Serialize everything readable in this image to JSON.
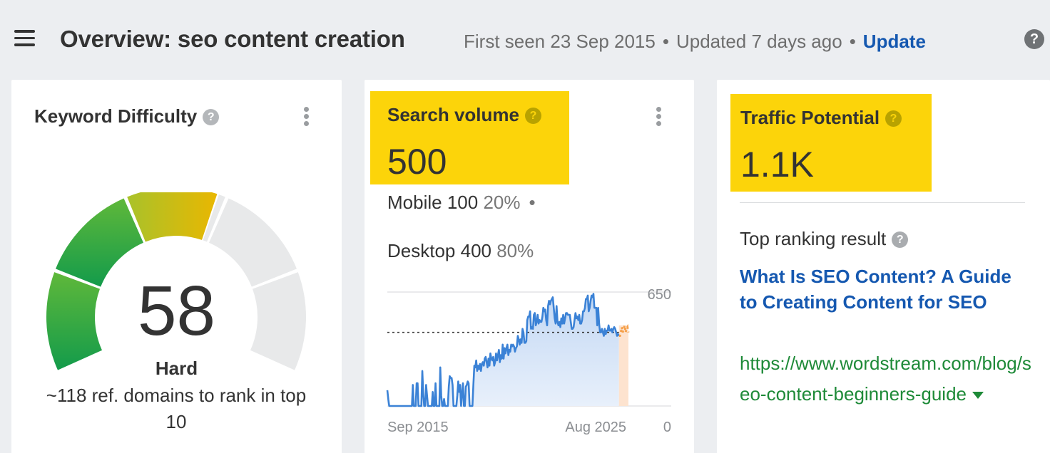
{
  "header": {
    "title": "Overview: seo content creation",
    "first_seen": "First seen 23 Sep 2015",
    "updated": "Updated 7 days ago",
    "separator": "•",
    "update_link": "Update",
    "help": "?"
  },
  "keyword_difficulty": {
    "title": "Keyword Difficulty",
    "value": "58",
    "level": "Hard",
    "description": "~118 ref. domains to rank in top 10",
    "gauge_max": 100,
    "gauge_colors": [
      "#0f9d4d",
      "#6cbf35",
      "#c2c21f",
      "#e6b800",
      "#e8e9ea"
    ]
  },
  "search_volume": {
    "title": "Search volume",
    "value": "500",
    "mobile_label": "Mobile 100",
    "mobile_pct": "20%",
    "bullet": "•",
    "desktop_label": "Desktop 400",
    "desktop_pct": "80%",
    "highlight_color": "#fcd40a"
  },
  "chart_data": {
    "type": "area",
    "x_start_label": "Sep 2015",
    "x_end_label": "Aug 2025",
    "y_max_label": "650",
    "y_min_label": "0",
    "ylim": [
      0,
      650
    ],
    "reference_line": 420,
    "series_color": "#3b82d6",
    "forecast_color": "#f5a04a",
    "values": [
      90,
      40,
      0,
      0,
      0,
      0,
      0,
      0,
      0,
      0,
      0,
      0,
      0,
      0,
      0,
      0,
      0,
      0,
      0,
      0,
      0,
      0,
      0,
      0,
      0,
      0,
      0,
      120,
      0,
      0,
      0,
      130,
      130,
      0,
      0,
      0,
      0,
      200,
      70,
      0,
      0,
      120,
      60,
      0,
      0,
      0,
      0,
      0,
      80,
      0,
      0,
      130,
      0,
      0,
      0,
      0,
      220,
      60,
      0,
      0,
      40,
      0,
      0,
      0,
      0,
      110,
      170,
      160,
      160,
      120,
      0,
      0,
      0,
      0,
      60,
      140,
      80,
      120,
      0,
      70,
      130,
      0,
      0,
      110,
      120,
      140,
      130,
      0,
      0,
      0,
      0,
      120,
      230,
      220,
      260,
      200,
      230,
      210,
      240,
      200,
      240,
      250,
      230,
      270,
      280,
      250,
      220,
      270,
      230,
      300,
      270,
      260,
      280,
      230,
      250,
      300,
      260,
      290,
      320,
      250,
      290,
      270,
      350,
      270,
      330,
      300,
      330,
      350,
      290,
      320,
      310,
      350,
      340,
      350,
      340,
      310,
      330,
      340,
      400,
      380,
      350,
      380,
      360,
      440,
      420,
      360,
      360,
      370,
      490,
      510,
      510,
      540,
      440,
      450,
      440,
      520,
      530,
      460,
      480,
      520,
      470,
      490,
      480,
      480,
      510,
      560,
      540,
      550,
      490,
      460,
      570,
      600,
      580,
      600,
      610,
      620,
      560,
      500,
      470,
      570,
      480,
      460,
      480,
      450,
      500,
      470,
      520,
      470,
      500,
      530,
      530,
      520,
      520,
      520,
      480,
      440,
      440,
      450,
      490,
      530,
      500,
      510,
      490,
      520,
      470,
      470,
      490,
      540,
      540,
      560,
      610,
      610,
      630,
      540,
      560,
      600,
      630,
      620,
      640,
      560,
      560,
      560,
      460,
      560,
      470,
      420,
      420,
      440,
      420,
      400,
      440,
      410,
      430,
      430,
      460,
      430,
      430,
      440,
      420,
      440,
      450,
      440,
      420,
      400,
      410,
      400
    ],
    "forecast": [
      400,
      420,
      450,
      420,
      440,
      460,
      420,
      440,
      450,
      420
    ]
  },
  "traffic_potential": {
    "title": "Traffic Potential",
    "value": "1.1K",
    "top_ranking_label": "Top ranking result",
    "result_title": "What Is SEO Content? A Guide to Creating Content for SEO",
    "result_url": "https://www.wordstream.com/blog/seo-content-beginners-guide",
    "highlight_color": "#fcd40a"
  }
}
